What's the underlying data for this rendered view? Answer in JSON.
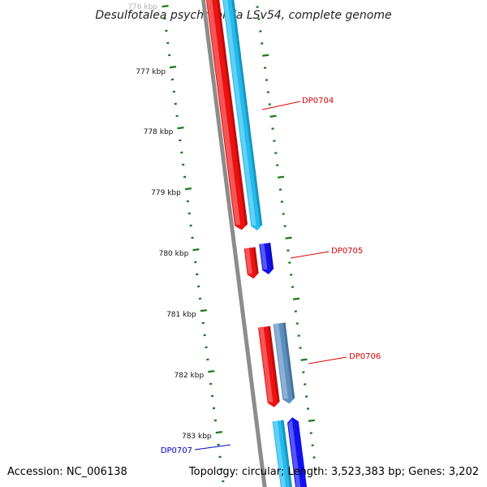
{
  "title": "Desulfotalea psychrophila LSv54, complete genome",
  "accession_text": "Accession: NC_006138",
  "stats_text": "Topology: circular; Length: 3,523,383 bp; Genes: 3,202",
  "colors": {
    "backbone": "#8c8c8c",
    "tick": "#1a7a1a",
    "red_gene": "#ee1111",
    "cyan_gene": "#22bbee",
    "blue_gene": "#1111ee",
    "steel_gene": "#5b8fbf",
    "label_red": "#dd0000",
    "label_blue": "#0000cc"
  },
  "ticks": [
    {
      "label": "776 kbp"
    },
    {
      "label": "777 kbp"
    },
    {
      "label": "778 kbp"
    },
    {
      "label": "779 kbp"
    },
    {
      "label": "780 kbp"
    },
    {
      "label": "781 kbp"
    },
    {
      "label": "782 kbp"
    },
    {
      "label": "783 kbp"
    }
  ],
  "gene_labels": [
    {
      "text": "DP0704",
      "color": "label_red"
    },
    {
      "text": "DP0705",
      "color": "label_red"
    },
    {
      "text": "DP0706",
      "color": "label_red"
    },
    {
      "text": "DP0707",
      "color": "label_blue"
    }
  ]
}
